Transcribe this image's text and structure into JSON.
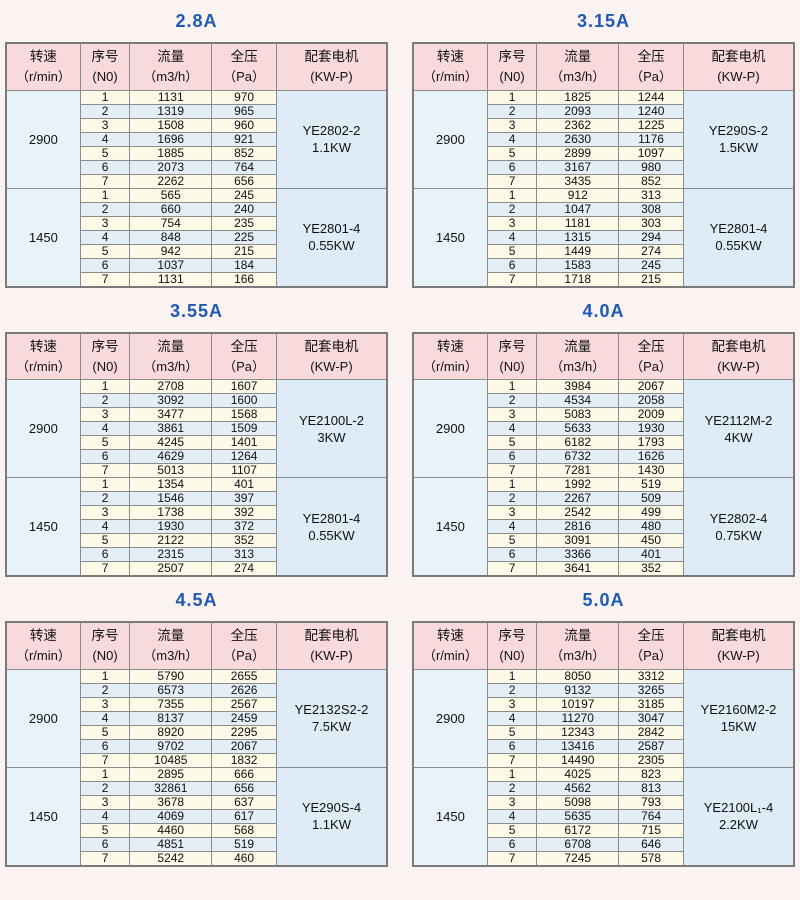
{
  "colors": {
    "page_bg": "#fbf3f2",
    "title_blue": "#1f58b5",
    "header_pink": "#f8d9dc",
    "row_cream": "#fdf9e7",
    "row_blue": "#e4eef7",
    "speed_bg": "#e8f2f9",
    "motor_bg": "#ddecf6",
    "border_gray": "#8c8c8c"
  },
  "columns": [
    {
      "line1": "转速",
      "line2": "（r/min）"
    },
    {
      "line1": "序号",
      "line2": "(N0)"
    },
    {
      "line1": "流量",
      "line2": "（m3/h）"
    },
    {
      "line1": "全压",
      "line2": "（Pa）"
    },
    {
      "line1": "配套电机",
      "line2": "(KW-P)"
    }
  ],
  "tables": [
    {
      "title": "2.8A",
      "groups": [
        {
          "speed": "2900",
          "motor_model": "YE2802-2",
          "motor_power": "1.1KW",
          "rows": [
            [
              "1",
              "1131",
              "970"
            ],
            [
              "2",
              "1319",
              "965"
            ],
            [
              "3",
              "1508",
              "960"
            ],
            [
              "4",
              "1696",
              "921"
            ],
            [
              "5",
              "1885",
              "852"
            ],
            [
              "6",
              "2073",
              "764"
            ],
            [
              "7",
              "2262",
              "656"
            ]
          ]
        },
        {
          "speed": "1450",
          "motor_model": "YE2801-4",
          "motor_power": "0.55KW",
          "rows": [
            [
              "1",
              "565",
              "245"
            ],
            [
              "2",
              "660",
              "240"
            ],
            [
              "3",
              "754",
              "235"
            ],
            [
              "4",
              "848",
              "225"
            ],
            [
              "5",
              "942",
              "215"
            ],
            [
              "6",
              "1037",
              "184"
            ],
            [
              "7",
              "1131",
              "166"
            ]
          ]
        }
      ]
    },
    {
      "title": "3.15A",
      "groups": [
        {
          "speed": "2900",
          "motor_model": "YE290S-2",
          "motor_power": "1.5KW",
          "rows": [
            [
              "1",
              "1825",
              "1244"
            ],
            [
              "2",
              "2093",
              "1240"
            ],
            [
              "3",
              "2362",
              "1225"
            ],
            [
              "4",
              "2630",
              "1176"
            ],
            [
              "5",
              "2899",
              "1097"
            ],
            [
              "6",
              "3167",
              "980"
            ],
            [
              "7",
              "3435",
              "852"
            ]
          ]
        },
        {
          "speed": "1450",
          "motor_model": "YE2801-4",
          "motor_power": "0.55KW",
          "rows": [
            [
              "1",
              "912",
              "313"
            ],
            [
              "2",
              "1047",
              "308"
            ],
            [
              "3",
              "1181",
              "303"
            ],
            [
              "4",
              "1315",
              "294"
            ],
            [
              "5",
              "1449",
              "274"
            ],
            [
              "6",
              "1583",
              "245"
            ],
            [
              "7",
              "1718",
              "215"
            ]
          ]
        }
      ]
    },
    {
      "title": "3.55A",
      "groups": [
        {
          "speed": "2900",
          "motor_model": "YE2100L-2",
          "motor_power": "3KW",
          "rows": [
            [
              "1",
              "2708",
              "1607"
            ],
            [
              "2",
              "3092",
              "1600"
            ],
            [
              "3",
              "3477",
              "1568"
            ],
            [
              "4",
              "3861",
              "1509"
            ],
            [
              "5",
              "4245",
              "1401"
            ],
            [
              "6",
              "4629",
              "1264"
            ],
            [
              "7",
              "5013",
              "1107"
            ]
          ]
        },
        {
          "speed": "1450",
          "motor_model": "YE2801-4",
          "motor_power": "0.55KW",
          "rows": [
            [
              "1",
              "1354",
              "401"
            ],
            [
              "2",
              "1546",
              "397"
            ],
            [
              "3",
              "1738",
              "392"
            ],
            [
              "4",
              "1930",
              "372"
            ],
            [
              "5",
              "2122",
              "352"
            ],
            [
              "6",
              "2315",
              "313"
            ],
            [
              "7",
              "2507",
              "274"
            ]
          ]
        }
      ]
    },
    {
      "title": "4.0A",
      "groups": [
        {
          "speed": "2900",
          "motor_model": "YE2112M-2",
          "motor_power": "4KW",
          "rows": [
            [
              "1",
              "3984",
              "2067"
            ],
            [
              "2",
              "4534",
              "2058"
            ],
            [
              "3",
              "5083",
              "2009"
            ],
            [
              "4",
              "5633",
              "1930"
            ],
            [
              "5",
              "6182",
              "1793"
            ],
            [
              "6",
              "6732",
              "1626"
            ],
            [
              "7",
              "7281",
              "1430"
            ]
          ]
        },
        {
          "speed": "1450",
          "motor_model": "YE2802-4",
          "motor_power": "0.75KW",
          "rows": [
            [
              "1",
              "1992",
              "519"
            ],
            [
              "2",
              "2267",
              "509"
            ],
            [
              "3",
              "2542",
              "499"
            ],
            [
              "4",
              "2816",
              "480"
            ],
            [
              "5",
              "3091",
              "450"
            ],
            [
              "6",
              "3366",
              "401"
            ],
            [
              "7",
              "3641",
              "352"
            ]
          ]
        }
      ]
    },
    {
      "title": "4.5A",
      "groups": [
        {
          "speed": "2900",
          "motor_model": "YE2132S2-2",
          "motor_power": "7.5KW",
          "rows": [
            [
              "1",
              "5790",
              "2655"
            ],
            [
              "2",
              "6573",
              "2626"
            ],
            [
              "3",
              "7355",
              "2567"
            ],
            [
              "4",
              "8137",
              "2459"
            ],
            [
              "5",
              "8920",
              "2295"
            ],
            [
              "6",
              "9702",
              "2067"
            ],
            [
              "7",
              "10485",
              "1832"
            ]
          ]
        },
        {
          "speed": "1450",
          "motor_model": "YE290S-4",
          "motor_power": "1.1KW",
          "rows": [
            [
              "1",
              "2895",
              "666"
            ],
            [
              "2",
              "32861",
              "656"
            ],
            [
              "3",
              "3678",
              "637"
            ],
            [
              "4",
              "4069",
              "617"
            ],
            [
              "5",
              "4460",
              "568"
            ],
            [
              "6",
              "4851",
              "519"
            ],
            [
              "7",
              "5242",
              "460"
            ]
          ]
        }
      ]
    },
    {
      "title": "5.0A",
      "groups": [
        {
          "speed": "2900",
          "motor_model": "YE2160M2-2",
          "motor_power": "15KW",
          "rows": [
            [
              "1",
              "8050",
              "3312"
            ],
            [
              "2",
              "9132",
              "3265"
            ],
            [
              "3",
              "10197",
              "3185"
            ],
            [
              "4",
              "11270",
              "3047"
            ],
            [
              "5",
              "12343",
              "2842"
            ],
            [
              "6",
              "13416",
              "2587"
            ],
            [
              "7",
              "14490",
              "2305"
            ]
          ]
        },
        {
          "speed": "1450",
          "motor_model": "YE2100L₁-4",
          "motor_power": "2.2KW",
          "rows": [
            [
              "1",
              "4025",
              "823"
            ],
            [
              "2",
              "4562",
              "813"
            ],
            [
              "3",
              "5098",
              "793"
            ],
            [
              "4",
              "5635",
              "764"
            ],
            [
              "5",
              "6172",
              "715"
            ],
            [
              "6",
              "6708",
              "646"
            ],
            [
              "7",
              "7245",
              "578"
            ]
          ]
        }
      ]
    }
  ]
}
